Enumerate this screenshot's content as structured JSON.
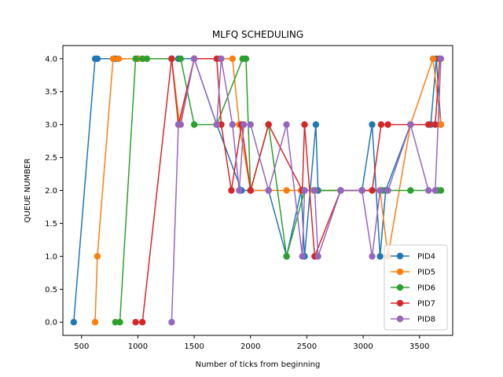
{
  "chart_data": {
    "type": "line",
    "title": "MLFQ SCHEDULING",
    "xlabel": "Number of ticks from beginning",
    "ylabel": "QUEUE NUMBER",
    "xlim": [
      334,
      3795
    ],
    "ylim": [
      -0.2,
      4.2
    ],
    "xticks": [
      500,
      1000,
      1500,
      2000,
      2500,
      3000,
      3500
    ],
    "xtick_labels": [
      "500",
      "1000",
      "1500",
      "2000",
      "2500",
      "3000",
      "3500"
    ],
    "yticks": [
      0,
      0.5,
      1,
      1.5,
      2,
      2.5,
      3,
      3.5,
      4
    ],
    "ytick_labels": [
      "0.0",
      "0.5",
      "1.0",
      "1.5",
      "2.0",
      "2.5",
      "3.0",
      "3.5",
      "4.0"
    ],
    "grid": false,
    "legend": "lower-right",
    "series": [
      {
        "name": "PID4",
        "color": "#1f77b4",
        "points": [
          [
            430,
            0
          ],
          [
            620,
            4
          ],
          [
            640,
            4
          ],
          [
            800,
            4
          ],
          [
            1000,
            4
          ],
          [
            1300,
            4
          ],
          [
            1360,
            4
          ],
          [
            1500,
            4
          ],
          [
            1700,
            3
          ],
          [
            1920,
            2
          ],
          [
            2000,
            2
          ],
          [
            2160,
            2
          ],
          [
            2320,
            1
          ],
          [
            2450,
            2
          ],
          [
            2480,
            1
          ],
          [
            2580,
            3
          ],
          [
            2600,
            2
          ],
          [
            2800,
            2
          ],
          [
            2990,
            2
          ],
          [
            3080,
            3
          ],
          [
            3150,
            1
          ],
          [
            3200,
            2
          ],
          [
            3420,
            3
          ],
          [
            3600,
            3
          ],
          [
            3650,
            4
          ],
          [
            3690,
            3
          ]
        ]
      },
      {
        "name": "PID5",
        "color": "#ff7f0e",
        "points": [
          [
            620,
            0
          ],
          [
            640,
            1
          ],
          [
            780,
            4
          ],
          [
            830,
            4
          ],
          [
            1000,
            4
          ],
          [
            1300,
            4
          ],
          [
            1370,
            3
          ],
          [
            1500,
            4
          ],
          [
            1730,
            4
          ],
          [
            1840,
            4
          ],
          [
            1900,
            3
          ],
          [
            2000,
            2
          ],
          [
            2160,
            2
          ],
          [
            2320,
            2
          ],
          [
            2450,
            2
          ],
          [
            2560,
            2
          ],
          [
            2800,
            2
          ],
          [
            2990,
            2
          ],
          [
            3150,
            2
          ],
          [
            3220,
            1
          ],
          [
            3420,
            3
          ],
          [
            3620,
            4
          ],
          [
            3690,
            3
          ]
        ]
      },
      {
        "name": "PID6",
        "color": "#2ca02c",
        "points": [
          [
            800,
            0
          ],
          [
            840,
            0
          ],
          [
            980,
            4
          ],
          [
            1040,
            4
          ],
          [
            1080,
            4
          ],
          [
            1300,
            4
          ],
          [
            1380,
            4
          ],
          [
            1500,
            3
          ],
          [
            1700,
            3
          ],
          [
            1930,
            4
          ],
          [
            1960,
            4
          ],
          [
            2000,
            2
          ],
          [
            2160,
            3
          ],
          [
            2320,
            1
          ],
          [
            2480,
            2
          ],
          [
            2570,
            2
          ],
          [
            2800,
            2
          ],
          [
            2990,
            2
          ],
          [
            3170,
            2
          ],
          [
            3420,
            2
          ],
          [
            3660,
            2
          ],
          [
            3690,
            2
          ]
        ]
      },
      {
        "name": "PID7",
        "color": "#d62728",
        "points": [
          [
            980,
            0
          ],
          [
            1040,
            0
          ],
          [
            1300,
            4
          ],
          [
            1360,
            3
          ],
          [
            1500,
            4
          ],
          [
            1700,
            4
          ],
          [
            1740,
            3
          ],
          [
            1830,
            2
          ],
          [
            1920,
            3
          ],
          [
            2000,
            2
          ],
          [
            2160,
            3
          ],
          [
            2460,
            2
          ],
          [
            2480,
            3
          ],
          [
            2570,
            1
          ],
          [
            2800,
            2
          ],
          [
            2990,
            2
          ],
          [
            3080,
            2
          ],
          [
            3160,
            3
          ],
          [
            3220,
            3
          ],
          [
            3420,
            3
          ],
          [
            3580,
            3
          ],
          [
            3640,
            3
          ],
          [
            3680,
            4
          ]
        ]
      },
      {
        "name": "PID8",
        "color": "#9467bd",
        "points": [
          [
            1300,
            0
          ],
          [
            1360,
            3
          ],
          [
            1380,
            3
          ],
          [
            1500,
            4
          ],
          [
            1700,
            3
          ],
          [
            1740,
            4
          ],
          [
            1840,
            3
          ],
          [
            1900,
            2
          ],
          [
            1940,
            3
          ],
          [
            2000,
            3
          ],
          [
            2160,
            2
          ],
          [
            2320,
            3
          ],
          [
            2460,
            1
          ],
          [
            2480,
            2
          ],
          [
            2570,
            2
          ],
          [
            2600,
            1
          ],
          [
            2800,
            2
          ],
          [
            2990,
            2
          ],
          [
            3080,
            1
          ],
          [
            3150,
            2
          ],
          [
            3220,
            2
          ],
          [
            3420,
            3
          ],
          [
            3580,
            2
          ],
          [
            3640,
            2
          ],
          [
            3690,
            4
          ]
        ]
      }
    ]
  }
}
